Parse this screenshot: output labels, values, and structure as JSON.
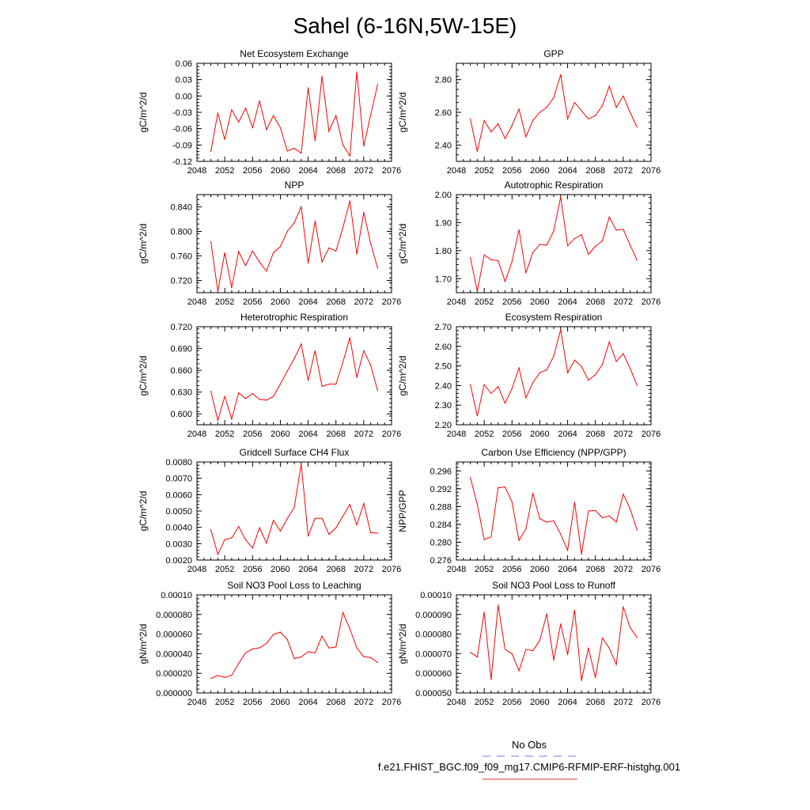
{
  "page_title": "Sahel (6-16N,5W-15E)",
  "legend": {
    "obs_label": "No Obs",
    "obs_color": "#7777ee",
    "run_label": "f.e21.FHIST_BGC.f09_f09_mg17.CMIP6-RFMIP-ERF-histghg.001",
    "run_color": "#ee3333"
  },
  "line_color": "#ff0000",
  "chart_data": [
    {
      "type": "line",
      "title": "Net Ecosystem Exchange",
      "ylabel": "gC/m^2/d",
      "xlim": [
        2048,
        2076
      ],
      "xticks": [
        "2048",
        "2052",
        "2056",
        "2060",
        "2064",
        "2068",
        "2072",
        "2076"
      ],
      "ylim": [
        -0.12,
        0.06
      ],
      "yticks": [
        "-0.12",
        "-0.09",
        "-0.06",
        "-0.03",
        "0.00",
        "0.03",
        "0.06"
      ],
      "x": [
        2050,
        2051,
        2052,
        2053,
        2054,
        2055,
        2056,
        2057,
        2058,
        2059,
        2060,
        2061,
        2062,
        2063,
        2064,
        2065,
        2066,
        2067,
        2068,
        2069,
        2070,
        2071,
        2072,
        2073,
        2074
      ],
      "values": [
        -0.102,
        -0.031,
        -0.08,
        -0.025,
        -0.048,
        -0.022,
        -0.058,
        -0.009,
        -0.062,
        -0.036,
        -0.058,
        -0.101,
        -0.096,
        -0.105,
        0.015,
        -0.082,
        0.036,
        -0.065,
        -0.036,
        -0.09,
        -0.11,
        0.044,
        -0.092,
        -0.035,
        0.021
      ]
    },
    {
      "type": "line",
      "title": "GPP",
      "ylabel": "gC/m^2/d",
      "xlim": [
        2048,
        2076
      ],
      "xticks": [
        "2048",
        "2052",
        "2056",
        "2060",
        "2064",
        "2068",
        "2072",
        "2076"
      ],
      "ylim": [
        2.3,
        2.9
      ],
      "yticks": [
        "2.40",
        "2.60",
        "2.80"
      ],
      "x": [
        2050,
        2051,
        2052,
        2053,
        2054,
        2055,
        2056,
        2057,
        2058,
        2059,
        2060,
        2061,
        2062,
        2063,
        2064,
        2065,
        2066,
        2067,
        2068,
        2069,
        2070,
        2071,
        2072,
        2073,
        2074
      ],
      "values": [
        2.56,
        2.36,
        2.55,
        2.48,
        2.53,
        2.44,
        2.52,
        2.62,
        2.45,
        2.55,
        2.6,
        2.63,
        2.69,
        2.83,
        2.56,
        2.66,
        2.61,
        2.56,
        2.58,
        2.64,
        2.76,
        2.63,
        2.7,
        2.6,
        2.51
      ]
    },
    {
      "type": "line",
      "title": "NPP",
      "ylabel": "gC/m^2/d",
      "xlim": [
        2048,
        2076
      ],
      "xticks": [
        "2048",
        "2052",
        "2056",
        "2060",
        "2064",
        "2068",
        "2072",
        "2076"
      ],
      "ylim": [
        0.7,
        0.86
      ],
      "yticks": [
        "0.720",
        "0.760",
        "0.800",
        "0.840"
      ],
      "x": [
        2050,
        2051,
        2052,
        2053,
        2054,
        2055,
        2056,
        2057,
        2058,
        2059,
        2060,
        2061,
        2062,
        2063,
        2064,
        2065,
        2066,
        2067,
        2068,
        2069,
        2070,
        2071,
        2072,
        2073,
        2074
      ],
      "values": [
        0.783,
        0.702,
        0.765,
        0.708,
        0.767,
        0.744,
        0.768,
        0.75,
        0.735,
        0.765,
        0.775,
        0.8,
        0.814,
        0.84,
        0.748,
        0.817,
        0.75,
        0.773,
        0.768,
        0.806,
        0.85,
        0.763,
        0.831,
        0.78,
        0.74
      ]
    },
    {
      "type": "line",
      "title": "Autotrophic Respiration",
      "ylabel": "gC/m^2/d",
      "xlim": [
        2048,
        2076
      ],
      "xticks": [
        "2048",
        "2052",
        "2056",
        "2060",
        "2064",
        "2068",
        "2072",
        "2076"
      ],
      "ylim": [
        1.65,
        2.0
      ],
      "yticks": [
        "1.70",
        "1.80",
        "1.90",
        "2.00"
      ],
      "x": [
        2050,
        2051,
        2052,
        2053,
        2054,
        2055,
        2056,
        2057,
        2058,
        2059,
        2060,
        2061,
        2062,
        2063,
        2064,
        2065,
        2066,
        2067,
        2068,
        2069,
        2070,
        2071,
        2072,
        2073,
        2074
      ],
      "values": [
        1.775,
        1.655,
        1.785,
        1.767,
        1.765,
        1.69,
        1.76,
        1.875,
        1.72,
        1.793,
        1.822,
        1.82,
        1.87,
        1.992,
        1.817,
        1.843,
        1.857,
        1.787,
        1.815,
        1.835,
        1.92,
        1.873,
        1.876,
        1.82,
        1.766
      ]
    },
    {
      "type": "line",
      "title": "Heterotrophic Respiration",
      "ylabel": "gC/m^2/d",
      "xlim": [
        2048,
        2076
      ],
      "xticks": [
        "2048",
        "2052",
        "2056",
        "2060",
        "2064",
        "2068",
        "2072",
        "2076"
      ],
      "ylim": [
        0.585,
        0.72
      ],
      "yticks": [
        "0.600",
        "0.630",
        "0.660",
        "0.690",
        "0.720"
      ],
      "x": [
        2050,
        2051,
        2052,
        2053,
        2054,
        2055,
        2056,
        2057,
        2058,
        2059,
        2060,
        2061,
        2062,
        2063,
        2064,
        2065,
        2066,
        2067,
        2068,
        2069,
        2070,
        2071,
        2072,
        2073,
        2074
      ],
      "values": [
        0.631,
        0.591,
        0.624,
        0.593,
        0.629,
        0.621,
        0.628,
        0.62,
        0.619,
        0.624,
        0.641,
        0.659,
        0.676,
        0.696,
        0.646,
        0.687,
        0.638,
        0.641,
        0.641,
        0.671,
        0.705,
        0.65,
        0.687,
        0.667,
        0.632
      ]
    },
    {
      "type": "line",
      "title": "Ecosystem Respiration",
      "ylabel": "gC/m^2/d",
      "xlim": [
        2048,
        2076
      ],
      "xticks": [
        "2048",
        "2052",
        "2056",
        "2060",
        "2064",
        "2068",
        "2072",
        "2076"
      ],
      "ylim": [
        2.2,
        2.7
      ],
      "yticks": [
        "2.20",
        "2.30",
        "2.40",
        "2.50",
        "2.60",
        "2.70"
      ],
      "x": [
        2050,
        2051,
        2052,
        2053,
        2054,
        2055,
        2056,
        2057,
        2058,
        2059,
        2060,
        2061,
        2062,
        2063,
        2064,
        2065,
        2066,
        2067,
        2068,
        2069,
        2070,
        2071,
        2072,
        2073,
        2074
      ],
      "values": [
        2.405,
        2.245,
        2.405,
        2.36,
        2.395,
        2.31,
        2.385,
        2.49,
        2.337,
        2.415,
        2.465,
        2.48,
        2.55,
        2.686,
        2.465,
        2.53,
        2.497,
        2.428,
        2.455,
        2.507,
        2.623,
        2.523,
        2.563,
        2.488,
        2.401
      ]
    },
    {
      "type": "line",
      "title": "Gridcell Surface CH4 Flux",
      "ylabel": "gC/m^2/d",
      "xlim": [
        2048,
        2076
      ],
      "xticks": [
        "2048",
        "2052",
        "2056",
        "2060",
        "2064",
        "2068",
        "2072",
        "2076"
      ],
      "ylim": [
        0.002,
        0.008
      ],
      "yticks": [
        "0.0020",
        "0.0030",
        "0.0040",
        "0.0050",
        "0.0060",
        "0.0070",
        "0.0080"
      ],
      "x": [
        2050,
        2051,
        2052,
        2053,
        2054,
        2055,
        2056,
        2057,
        2058,
        2059,
        2060,
        2061,
        2062,
        2063,
        2064,
        2065,
        2066,
        2067,
        2068,
        2069,
        2070,
        2071,
        2072,
        2073,
        2074
      ],
      "values": [
        0.00385,
        0.00235,
        0.00325,
        0.00335,
        0.00405,
        0.00325,
        0.00273,
        0.00398,
        0.00303,
        0.00443,
        0.00377,
        0.00453,
        0.00522,
        0.00788,
        0.00346,
        0.00455,
        0.00455,
        0.00357,
        0.00397,
        0.00468,
        0.0054,
        0.00415,
        0.00546,
        0.00367,
        0.00365
      ]
    },
    {
      "type": "line",
      "title": "Carbon Use Efficiency (NPP/GPP)",
      "ylabel": "NPP/GPP",
      "xlim": [
        2048,
        2076
      ],
      "xticks": [
        "2048",
        "2052",
        "2056",
        "2060",
        "2064",
        "2068",
        "2072",
        "2076"
      ],
      "ylim": [
        0.276,
        0.298
      ],
      "yticks": [
        "0.276",
        "0.280",
        "0.284",
        "0.288",
        "0.292",
        "0.296"
      ],
      "x": [
        2050,
        2051,
        2052,
        2053,
        2054,
        2055,
        2056,
        2057,
        2058,
        2059,
        2060,
        2061,
        2062,
        2063,
        2064,
        2065,
        2066,
        2067,
        2068,
        2069,
        2070,
        2071,
        2072,
        2073,
        2074
      ],
      "values": [
        0.2945,
        0.2885,
        0.2806,
        0.2812,
        0.2922,
        0.2924,
        0.289,
        0.2804,
        0.283,
        0.291,
        0.2853,
        0.2845,
        0.2848,
        0.2818,
        0.2782,
        0.289,
        0.2773,
        0.287,
        0.2871,
        0.2855,
        0.2859,
        0.2845,
        0.2908,
        0.2875,
        0.2827
      ]
    },
    {
      "type": "line",
      "title": "Soil NO3 Pool Loss to Leaching",
      "ylabel": "gN/m^2/d",
      "xlim": [
        2048,
        2076
      ],
      "xticks": [
        "2048",
        "2052",
        "2056",
        "2060",
        "2064",
        "2068",
        "2072",
        "2076"
      ],
      "ylim": [
        0,
        0.0001
      ],
      "yticks": [
        "0.000000",
        "0.000020",
        "0.000040",
        "0.000060",
        "0.000080",
        "0.00010"
      ],
      "x": [
        2050,
        2051,
        2052,
        2053,
        2054,
        2055,
        2056,
        2057,
        2058,
        2059,
        2060,
        2061,
        2062,
        2063,
        2064,
        2065,
        2066,
        2067,
        2068,
        2069,
        2070,
        2071,
        2072,
        2073,
        2074
      ],
      "values": [
        1.48e-05,
        1.78e-05,
        1.58e-05,
        1.8e-05,
        3e-05,
        4.1e-05,
        4.48e-05,
        4.6e-05,
        5.05e-05,
        5.95e-05,
        6.2e-05,
        5.45e-05,
        3.5e-05,
        3.68e-05,
        4.2e-05,
        4.08e-05,
        5.8e-05,
        4.58e-05,
        4.68e-05,
        8.2e-05,
        6.53e-05,
        4.6e-05,
        3.7e-05,
        3.6e-05,
        3.1e-05
      ]
    },
    {
      "type": "line",
      "title": "Soil NO3 Pool Loss to Runoff",
      "ylabel": "gN/m^2/d",
      "xlim": [
        2048,
        2076
      ],
      "xticks": [
        "2048",
        "2052",
        "2056",
        "2060",
        "2064",
        "2068",
        "2072",
        "2076"
      ],
      "ylim": [
        5e-05,
        0.0001
      ],
      "yticks": [
        "0.000050",
        "0.000060",
        "0.000070",
        "0.000080",
        "0.000090",
        "0.00010"
      ],
      "x": [
        2050,
        2051,
        2052,
        2053,
        2054,
        2055,
        2056,
        2057,
        2058,
        2059,
        2060,
        2061,
        2062,
        2063,
        2064,
        2065,
        2066,
        2067,
        2068,
        2069,
        2070,
        2071,
        2072,
        2073,
        2074
      ],
      "values": [
        7.07e-05,
        6.83e-05,
        9.12e-05,
        5.68e-05,
        9.48e-05,
        7.22e-05,
        7e-05,
        6.13e-05,
        7.22e-05,
        7.15e-05,
        7.68e-05,
        9.03e-05,
        6.67e-05,
        8.52e-05,
        6.95e-05,
        9.22e-05,
        5.63e-05,
        7.3e-05,
        5.78e-05,
        7.8e-05,
        7.28e-05,
        6.45e-05,
        9.4e-05,
        8.33e-05,
        7.83e-05
      ]
    }
  ]
}
